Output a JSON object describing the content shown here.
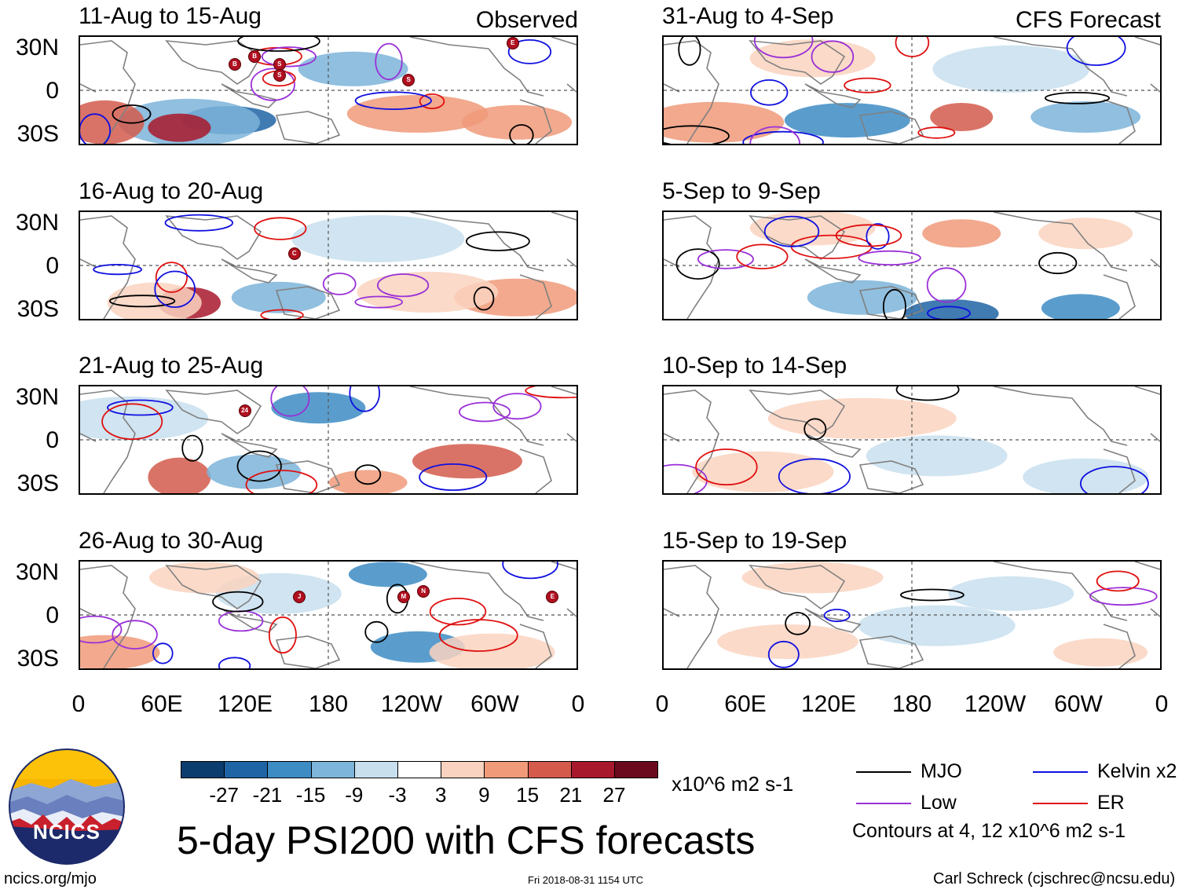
{
  "figure": {
    "title": "5-day PSI200 with CFS forecasts",
    "observed_label": "Observed",
    "forecast_label": "CFS Forecast",
    "units": "x10^6 m2 s-1",
    "contour_note": "Contours at 4, 12 x10^6 m2 s-1",
    "site": "ncics.org/mjo",
    "timestamp": "Fri 2018-08-31 1154 UTC",
    "author": "Carl Schreck (cjschrec@ncsu.edu)",
    "logo_text": "NCICS"
  },
  "panels_observed": [
    {
      "title": "11-Aug to 15-Aug"
    },
    {
      "title": "16-Aug to 20-Aug"
    },
    {
      "title": "21-Aug to 25-Aug"
    },
    {
      "title": "26-Aug to 30-Aug"
    }
  ],
  "panels_forecast": [
    {
      "title": "31-Aug to 4-Sep"
    },
    {
      "title": "5-Sep to 9-Sep"
    },
    {
      "title": "10-Sep to 14-Sep"
    },
    {
      "title": "15-Sep to 19-Sep"
    }
  ],
  "axes": {
    "lat_labels": [
      "30N",
      "0",
      "30S"
    ],
    "lon_labels": [
      "0",
      "60E",
      "120E",
      "180",
      "120W",
      "60W",
      "0"
    ]
  },
  "colorbar": {
    "labels": [
      "-27",
      "-21",
      "-15",
      "-9",
      "-3",
      "3",
      "9",
      "15",
      "21",
      "27"
    ],
    "colors": [
      "#0b3d6e",
      "#1f64a5",
      "#3d8cc4",
      "#7db4d9",
      "#c8dfee",
      "#ffffff",
      "#fad3c0",
      "#f09a7a",
      "#d45a4c",
      "#a8182c",
      "#6b0a1c"
    ]
  },
  "legend": [
    {
      "label": "MJO",
      "color": "#000000"
    },
    {
      "label": "Kelvin x2",
      "color": "#1010e0"
    },
    {
      "label": "Low",
      "color": "#9a30d8"
    },
    {
      "label": "ER",
      "color": "#e01010"
    }
  ],
  "storm_markers": [
    {
      "panel": 0,
      "label": "E"
    },
    {
      "panel": 0,
      "label": "B"
    },
    {
      "panel": 0,
      "label": "B"
    },
    {
      "panel": 0,
      "label": "S"
    },
    {
      "panel": 0,
      "label": "S"
    },
    {
      "panel": 0,
      "label": "S"
    },
    {
      "panel": 1,
      "label": "C"
    },
    {
      "panel": 2,
      "label": "24"
    },
    {
      "panel": 3,
      "label": "J"
    },
    {
      "panel": 3,
      "label": "M"
    },
    {
      "panel": 3,
      "label": "N"
    },
    {
      "panel": 3,
      "label": "E"
    }
  ]
}
